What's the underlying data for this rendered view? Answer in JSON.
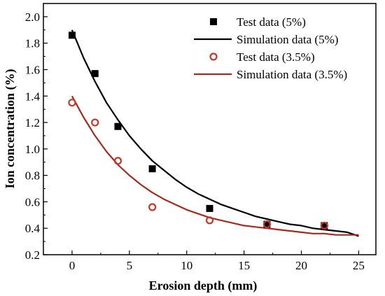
{
  "chart_data": {
    "type": "scatter",
    "xlabel": "Erosion depth (mm)",
    "ylabel": "Ion concentration (%)",
    "xlim": [
      -2.5,
      26.5
    ],
    "ylim": [
      0.2,
      2.1
    ],
    "xticks": [
      0,
      5,
      10,
      15,
      20,
      25
    ],
    "yticks": [
      0.2,
      0.4,
      0.6,
      0.8,
      1.0,
      1.2,
      1.4,
      1.6,
      1.8,
      2.0
    ],
    "xtick_labels": [
      "0",
      "5",
      "10",
      "15",
      "20",
      "25"
    ],
    "ytick_labels": [
      "0.2",
      "0.4",
      "0.6",
      "0.8",
      "1.0",
      "1.2",
      "1.4",
      "1.6",
      "1.8",
      "2.0"
    ],
    "grid": false,
    "legend_position": "top-right",
    "series": [
      {
        "name": "Test data (5%)",
        "kind": "marker-square-filled",
        "color": "#000000",
        "x": [
          0,
          2,
          4,
          7,
          12,
          17,
          22
        ],
        "y": [
          1.86,
          1.57,
          1.17,
          0.85,
          0.55,
          0.43,
          0.42
        ]
      },
      {
        "name": "Simulation data (5%)",
        "kind": "line",
        "color": "#000000",
        "x": [
          0,
          1,
          2,
          3,
          4,
          5,
          6,
          7,
          8,
          9,
          10,
          11,
          12,
          13,
          14,
          15,
          16,
          17,
          18,
          19,
          20,
          21,
          22,
          23,
          24,
          25
        ],
        "y": [
          1.9,
          1.69,
          1.51,
          1.35,
          1.22,
          1.1,
          1.0,
          0.91,
          0.84,
          0.77,
          0.71,
          0.66,
          0.62,
          0.58,
          0.55,
          0.52,
          0.49,
          0.47,
          0.45,
          0.43,
          0.42,
          0.4,
          0.39,
          0.38,
          0.37,
          0.34
        ]
      },
      {
        "name": "Test data (3.5%)",
        "kind": "marker-circle-open",
        "color": "#c0392b",
        "x": [
          0,
          2,
          4,
          7,
          12,
          17,
          22
        ],
        "y": [
          1.35,
          1.2,
          0.91,
          0.56,
          0.46,
          0.43,
          0.42
        ]
      },
      {
        "name": "Simulation data (3.5%)",
        "kind": "line",
        "color": "#a52a1f",
        "x": [
          0,
          1,
          2,
          3,
          4,
          5,
          6,
          7,
          8,
          9,
          10,
          11,
          12,
          13,
          14,
          15,
          16,
          17,
          18,
          19,
          20,
          21,
          22,
          23,
          24,
          25
        ],
        "y": [
          1.4,
          1.24,
          1.1,
          0.98,
          0.88,
          0.8,
          0.73,
          0.67,
          0.62,
          0.58,
          0.54,
          0.51,
          0.48,
          0.46,
          0.44,
          0.42,
          0.41,
          0.4,
          0.39,
          0.38,
          0.37,
          0.36,
          0.36,
          0.35,
          0.35,
          0.35
        ]
      }
    ]
  }
}
